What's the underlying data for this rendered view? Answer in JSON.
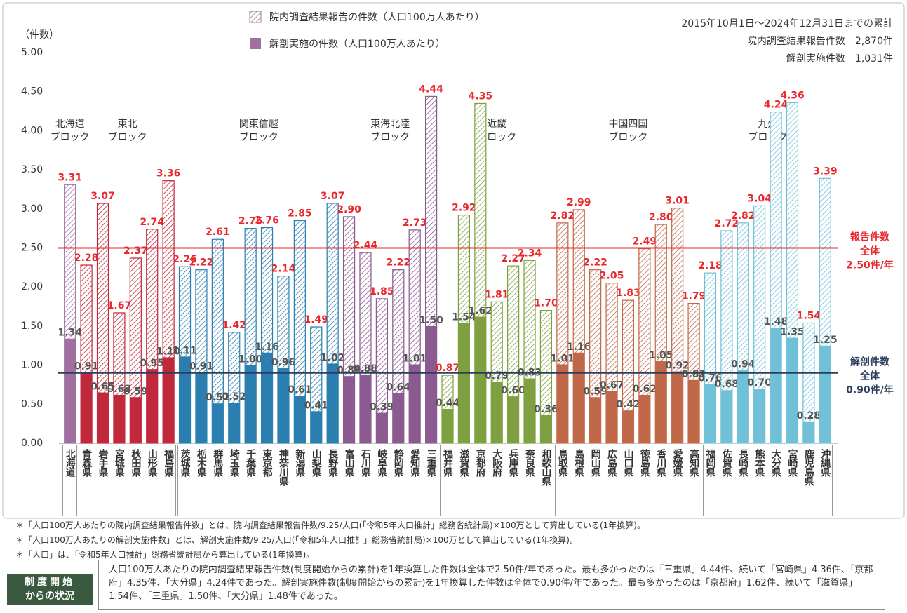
{
  "chart_data": {
    "type": "bar",
    "y_label": "（件数）",
    "ylim": [
      0,
      5
    ],
    "yticks": [
      {
        "value": 0,
        "label": "0.00"
      },
      {
        "value": 0.5,
        "label": "0.50"
      },
      {
        "value": 1,
        "label": "1.00"
      },
      {
        "value": 1.5,
        "label": "1.50"
      },
      {
        "value": 2,
        "label": "2.00"
      },
      {
        "value": 2.5,
        "label": "2.50"
      },
      {
        "value": 3,
        "label": "3.00"
      },
      {
        "value": 3.5,
        "label": "3.50"
      },
      {
        "value": 4,
        "label": "4.00"
      },
      {
        "value": 4.5,
        "label": "4.50"
      },
      {
        "value": 5,
        "label": "5.00"
      }
    ],
    "series": [
      {
        "name": "院内調査結果報告の件数（人口100万人あたり）",
        "pattern": "hatched"
      },
      {
        "name": "解剖実施の件数（人口100万人あたり）",
        "pattern": "solid"
      }
    ],
    "summary_lines": [
      "2015年10月1日～2024年12月31日までの累計",
      "院内調査結果報告件数　2,870件",
      "解剖実施件数　1,031件"
    ],
    "reference_lines": [
      {
        "value": 2.5,
        "color": "#e8282c",
        "label": [
          "報告件数",
          "全体",
          "2.50件/年"
        ]
      },
      {
        "value": 0.9,
        "color": "#2c3e5c",
        "label": [
          "解剖件数",
          "全体",
          "0.90件/年"
        ]
      }
    ],
    "blocks": [
      {
        "label": [
          "北海道",
          "ブロック"
        ],
        "color": "#a070a0",
        "categories": [
          "北海道"
        ],
        "report": [
          3.31
        ],
        "report_labels": [
          "3.31"
        ],
        "autopsy": [
          1.34
        ],
        "autopsy_labels": [
          "1.34"
        ]
      },
      {
        "label": [
          "東北",
          "ブロック"
        ],
        "color": "#c0283c",
        "categories": [
          "青森県",
          "岩手県",
          "宮城県",
          "秋田県",
          "山形県",
          "福島県"
        ],
        "report": [
          2.28,
          3.07,
          1.67,
          2.37,
          2.74,
          3.36
        ],
        "report_labels": [
          "2.28",
          "3.07",
          "1.67",
          "2.37",
          "2.74",
          "3.36"
        ],
        "autopsy": [
          0.91,
          0.65,
          0.62,
          0.59,
          0.95,
          1.1
        ],
        "autopsy_labels": [
          "0.91",
          "0.65",
          "0.62",
          "0.59",
          "0.95",
          "1.10"
        ]
      },
      {
        "label": [
          "関東信越",
          "ブロック"
        ],
        "color": "#2a7fb0",
        "categories": [
          "茨城県",
          "栃木県",
          "群馬県",
          "埼玉県",
          "千葉県",
          "東京都",
          "神奈川県",
          "新潟県",
          "山梨県",
          "長野県"
        ],
        "report": [
          2.26,
          2.22,
          2.61,
          1.42,
          2.75,
          2.76,
          2.14,
          2.85,
          1.49,
          3.07
        ],
        "report_labels": [
          "2.26",
          "2.22",
          "2.61",
          "1.42",
          "2.75",
          "2.76",
          "2.14",
          "2.85",
          "1.49",
          "3.07"
        ],
        "autopsy": [
          1.11,
          0.91,
          0.51,
          0.52,
          1,
          1.16,
          0.96,
          0.61,
          0.41,
          1.02
        ],
        "autopsy_labels": [
          "1.11",
          "0.91",
          "0.51",
          "0.52",
          "1.00",
          "1.16",
          "0.96",
          "0.61",
          "0.41",
          "1.02"
        ]
      },
      {
        "label": [
          "東海北陸",
          "ブロック"
        ],
        "color": "#8a5a90",
        "categories": [
          "富山県",
          "石川県",
          "岐阜県",
          "静岡県",
          "愛知県",
          "三重県"
        ],
        "report": [
          2.9,
          2.44,
          1.85,
          2.22,
          2.73,
          4.44
        ],
        "report_labels": [
          "2.90",
          "2.44",
          "1.85",
          "2.22",
          "2.73",
          "4.44"
        ],
        "autopsy": [
          0.86,
          0.88,
          0.39,
          0.64,
          1.01,
          1.5
        ],
        "autopsy_labels": [
          "0.86",
          "0.88",
          "0.39",
          "0.64",
          "1.01",
          "1.50"
        ]
      },
      {
        "label": [
          "近畿",
          "ブロック"
        ],
        "color": "#7fa040",
        "categories": [
          "福井県",
          "滋賀県",
          "京都府",
          "大阪府",
          "兵庫県",
          "奈良県",
          "和歌山県"
        ],
        "report": [
          0.87,
          2.92,
          4.35,
          1.81,
          2.27,
          2.34,
          1.7
        ],
        "report_labels": [
          "0.87",
          "2.92",
          "4.35",
          "1.81",
          "2.27",
          "2.34",
          "1.70"
        ],
        "autopsy": [
          0.44,
          1.54,
          1.62,
          0.79,
          0.6,
          0.83,
          0.36
        ],
        "autopsy_labels": [
          "0.44",
          "1.54",
          "1.62",
          "0.79",
          "0.60",
          "0.83",
          "0.36"
        ]
      },
      {
        "label": [
          "中国四国",
          "ブロック"
        ],
        "color": "#c06848",
        "categories": [
          "鳥取県",
          "島根県",
          "岡山県",
          "広島県",
          "山口県",
          "徳島県",
          "香川県",
          "愛媛県",
          "高知県"
        ],
        "report": [
          2.82,
          2.99,
          2.22,
          2.05,
          1.83,
          2.49,
          2.8,
          3.01,
          1.79
        ],
        "report_labels": [
          "2.82",
          "2.99",
          "2.22",
          "2.05",
          "1.83",
          "2.49",
          "2.80",
          "3.01",
          "1.79"
        ],
        "autopsy": [
          1.01,
          1.16,
          0.59,
          0.67,
          0.42,
          0.62,
          1.05,
          0.92,
          0.81
        ],
        "autopsy_labels": [
          "1.01",
          "1.16",
          "0.59",
          "0.67",
          "0.42",
          "0.62",
          "1.05",
          "0.92",
          "0.81"
        ]
      },
      {
        "label": [
          "九州",
          "ブロック"
        ],
        "color": "#70c0d8",
        "categories": [
          "福岡県",
          "佐賀県",
          "長崎県",
          "熊本県",
          "大分県",
          "宮崎県",
          "鹿児島県",
          "沖縄県"
        ],
        "report": [
          2.18,
          2.72,
          2.82,
          3.04,
          4.24,
          4.36,
          1.54,
          3.39
        ],
        "report_labels": [
          "2.18",
          "2.72",
          "2.82",
          "3.04",
          "4.24",
          "4.36",
          "1.54",
          "3.39"
        ],
        "autopsy": [
          0.76,
          0.68,
          0.94,
          0.7,
          1.48,
          1.35,
          0.28,
          1.25
        ],
        "autopsy_labels": [
          "0.76",
          "0.68",
          "0.94",
          "0.70",
          "1.48",
          "1.35",
          "0.28",
          "1.25"
        ]
      }
    ]
  },
  "footnotes": [
    "＊「人口100万人あたりの院内調査結果報告件数」とは、院内調査結果報告件数/9.25/人口(「令和5年人口推計」総務省統計局)×100万として算出している(1年換算)。",
    "＊「人口100万人あたりの解剖実施件数」とは、解剖実施件数/9.25/人口(「令和5年人口推計」総務省統計局)×100万として算出している(1年換算)。",
    "＊「人口」は、「令和5年人口推計」総務省統計局から算出している(1年換算)。"
  ],
  "status": {
    "label": [
      "制度開始",
      "からの状況"
    ],
    "text": "人口100万人あたりの院内調査結果報告件数(制度開始からの累計)を1年換算した件数は全体で2.50件/年であった。最も多かったのは「三重県」4.44件、続いて「宮崎県」4.36件、「京都府」4.35件、「大分県」4.24件であった。解剖実施件数(制度開始からの累計)を1年換算した件数は全体で0.90件/年であった。最も多かったのは「京都府」1.62件、続いて「滋賀県」 1.54件、「三重県」1.50件、「大分県」1.48件であった。"
  }
}
